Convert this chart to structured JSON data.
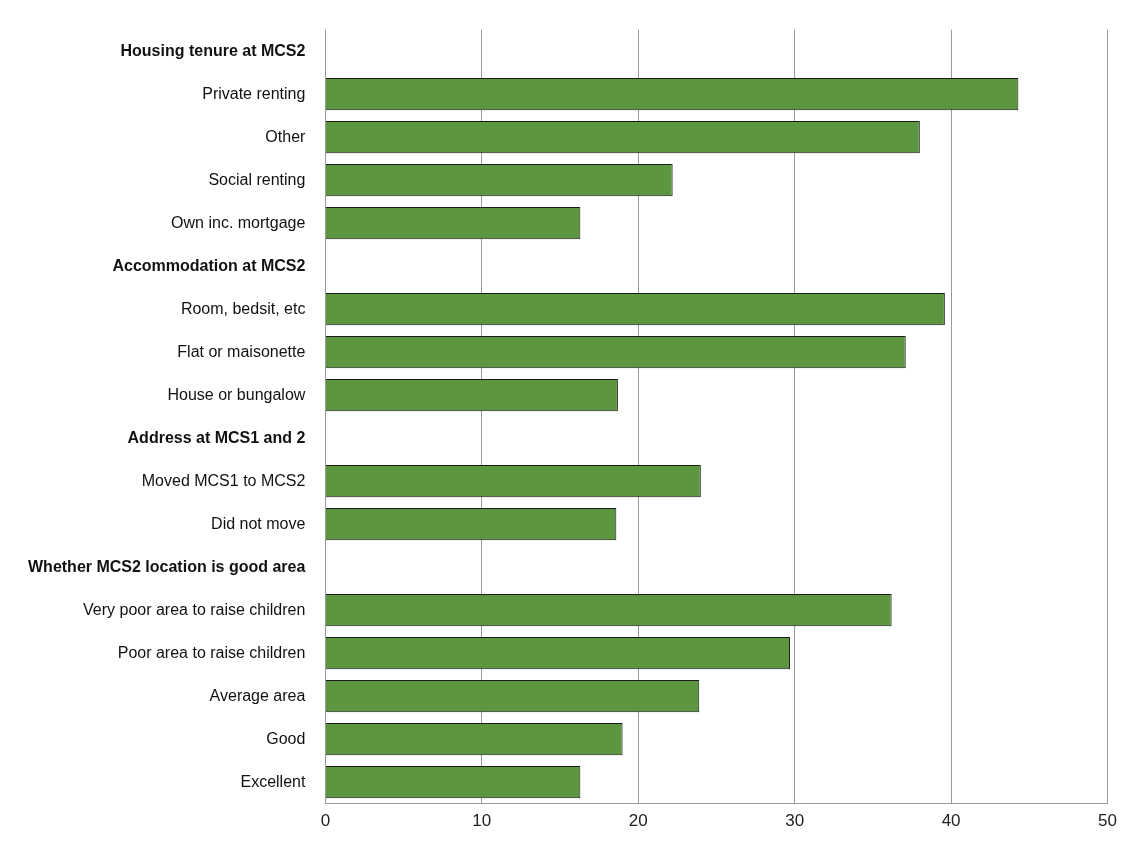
{
  "chart_data": {
    "type": "bar",
    "orientation": "horizontal",
    "categories": [
      "Housing tenure at MCS2",
      "Private renting",
      "Other",
      "Social renting",
      "Own inc. mortgage",
      "Accommodation at MCS2",
      "Room, bedsit, etc",
      "Flat or maisonette",
      "House or bungalow",
      "Address at MCS1 and 2",
      "Moved MCS1 to MCS2",
      "Did not move",
      "Whether MCS2 location is good area",
      "Very poor area to raise children",
      "Poor area to raise children",
      "Average area",
      "Good",
      "Excellent"
    ],
    "values": [
      null,
      44.3,
      38.0,
      22.2,
      16.3,
      null,
      39.6,
      37.1,
      18.7,
      null,
      24.0,
      18.6,
      null,
      36.2,
      29.7,
      23.9,
      19.0,
      16.3
    ],
    "color": "#5d9640",
    "xlim": [
      0,
      50
    ],
    "xticks": [
      0,
      10,
      20,
      30,
      40,
      50
    ],
    "grid": "x",
    "legend": false
  }
}
